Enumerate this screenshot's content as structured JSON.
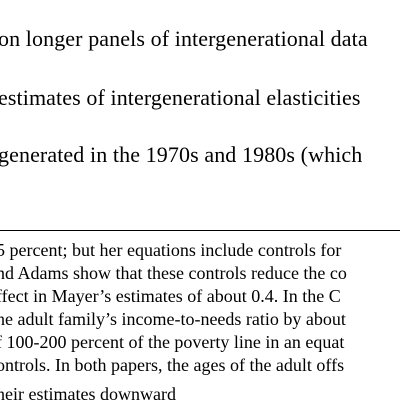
{
  "main_text": {
    "lines": [
      "on longer panels of intergenerational data",
      "estimates of intergenerational elasticities",
      "generated in the 1970s and 1980s (which"
    ]
  },
  "footnote": {
    "lines": [
      "5 percent; but her equations include controls for",
      "nd Adams show that these controls reduce the co",
      "ffect in Mayer’s estimates of about 0.4. In the C",
      "he adult family’s income-to-needs ratio by about",
      "f 100-200 percent of the poverty line in an equat",
      "ontrols. In both papers, the ages of the adult offs",
      "heir estimates downward"
    ]
  }
}
